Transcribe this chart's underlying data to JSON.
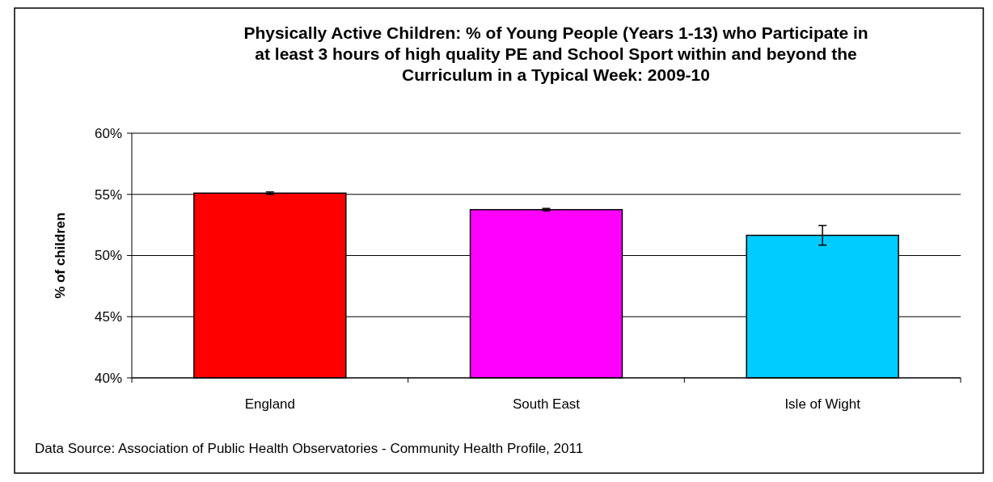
{
  "chart_data": {
    "type": "bar",
    "title": "Physically Active Children: % of Young People (Years 1-13) who Participate in at least 3 hours of high quality PE and School Sport within and beyond the Curriculum in a Typical Week: 2009-10",
    "ylabel": "% of children",
    "categories": [
      "England",
      "South East",
      "Isle of Wight"
    ],
    "values": [
      55.1,
      53.75,
      51.65
    ],
    "colors": [
      "#ff0000",
      "#ff00ff",
      "#00ccff"
    ],
    "errors": [
      [
        55.0,
        55.2
      ],
      [
        53.65,
        53.85
      ],
      [
        50.85,
        52.45
      ]
    ],
    "ylim": [
      40,
      60
    ],
    "yticks": [
      {
        "value": 40,
        "label": "40%"
      },
      {
        "value": 45,
        "label": "45%"
      },
      {
        "value": 50,
        "label": "50%"
      },
      {
        "value": 55,
        "label": "55%"
      },
      {
        "value": 60,
        "label": "60%"
      }
    ],
    "grid": "y",
    "annotations": [
      "Data Source: Association of Public Health Observatories - Community Health Profile, 2011"
    ]
  }
}
